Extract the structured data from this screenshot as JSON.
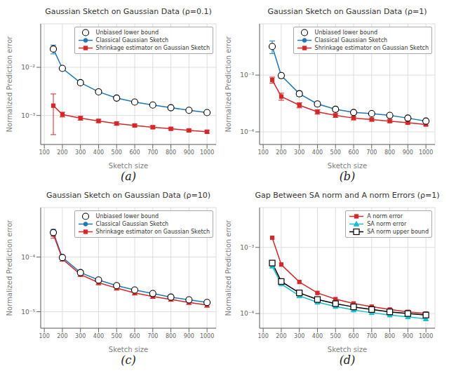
{
  "chart_data": [
    {
      "type": "line",
      "title": "Gaussian Sketch on Gaussian Data (ρ=0.1)",
      "x_label": "Sketch size",
      "y_label": "Normalized Prediction error",
      "annotations": [
        "(a)"
      ],
      "x": [
        150,
        200,
        300,
        400,
        500,
        600,
        700,
        800,
        900,
        1000
      ],
      "series": [
        {
          "name": "Unbiased lower bound",
          "color": "#000000",
          "marker": "open_circle",
          "line_style": "none",
          "values": [
            0.024,
            0.0095,
            0.0048,
            0.0031,
            0.0023,
            0.0019,
            0.00165,
            0.00145,
            0.00128,
            0.00115
          ]
        },
        {
          "name": "Classical Gaussian Sketch",
          "color": "#1f77b4",
          "marker": "circle",
          "line_style": "solid",
          "values": [
            0.024,
            0.0095,
            0.0048,
            0.0031,
            0.0023,
            0.0019,
            0.00165,
            0.00145,
            0.00128,
            0.00115
          ],
          "errors": [
            0.005,
            0.0008,
            0.0004,
            0.0002,
            0.00015,
            0.00012,
            0.0001,
            0.0001,
            8e-05,
            7e-05
          ]
        },
        {
          "name": "Shrinkage estimator on Gaussian Sketch",
          "color": "#d62728",
          "marker": "square",
          "line_style": "solid",
          "values": [
            0.0016,
            0.00105,
            0.00088,
            0.00077,
            0.00068,
            0.00062,
            0.00057,
            0.00053,
            0.00049,
            0.00046
          ],
          "errors": [
            0.0012,
            0.00012,
            8e-05,
            6e-05,
            5e-05,
            4e-05,
            4e-05,
            3e-05,
            3e-05,
            3e-05
          ]
        }
      ],
      "xlim": [
        80,
        1050
      ],
      "xticks": [
        100,
        200,
        300,
        400,
        500,
        600,
        700,
        800,
        900,
        1000
      ],
      "ylim": [
        0.00025,
        0.08
      ],
      "yticks": [
        {
          "value": 0.001,
          "label": "10⁻³"
        },
        {
          "value": 0.01,
          "label": "10⁻²"
        }
      ],
      "log": "y",
      "grid": true,
      "legend": "upper right"
    },
    {
      "type": "line",
      "title": "Gaussian Sketch on Gaussian Data (ρ=1)",
      "x_label": "Sketch size",
      "y_label": "Normalized Prediction error",
      "annotations": [
        "(b)"
      ],
      "x": [
        150,
        200,
        300,
        400,
        500,
        600,
        700,
        800,
        900,
        1000
      ],
      "series": [
        {
          "name": "Unbiased lower bound",
          "color": "#000000",
          "marker": "open_circle",
          "line_style": "none",
          "values": [
            0.0032,
            0.00098,
            0.00047,
            0.00031,
            0.00025,
            0.00022,
            0.00021,
            0.000195,
            0.000175,
            0.000155
          ]
        },
        {
          "name": "Classical Gaussian Sketch",
          "color": "#1f77b4",
          "marker": "circle",
          "line_style": "solid",
          "values": [
            0.0032,
            0.00098,
            0.00047,
            0.00031,
            0.00025,
            0.00022,
            0.00021,
            0.000195,
            0.000175,
            0.000155
          ],
          "errors": [
            0.0008,
            0.0001,
            5e-05,
            3e-05,
            2e-05,
            1.5e-05,
            1.2e-05,
            1e-05,
            1e-05,
            8e-06
          ]
        },
        {
          "name": "Shrinkage estimator on Gaussian Sketch",
          "color": "#d62728",
          "marker": "square",
          "line_style": "solid",
          "values": [
            0.00082,
            0.00042,
            0.000295,
            0.000225,
            0.000195,
            0.000175,
            0.000165,
            0.000155,
            0.000145,
            0.000135
          ],
          "errors": [
            0.0001,
            6e-05,
            3e-05,
            2e-05,
            1.5e-05,
            1.2e-05,
            1e-05,
            9e-06,
            8e-06,
            7e-06
          ]
        }
      ],
      "xlim": [
        80,
        1050
      ],
      "xticks": [
        100,
        200,
        300,
        400,
        500,
        600,
        700,
        800,
        900,
        1000
      ],
      "ylim": [
        6e-05,
        0.008
      ],
      "yticks": [
        {
          "value": 0.0001,
          "label": "10⁻⁴"
        },
        {
          "value": 0.001,
          "label": "10⁻³"
        }
      ],
      "log": "y",
      "grid": true,
      "legend": "upper right"
    },
    {
      "type": "line",
      "title": "Gaussian Sketch on Gaussian Data (ρ=10)",
      "x_label": "Sketch size",
      "y_label": "Normalized Prediction error",
      "annotations": [
        "(c)"
      ],
      "x": [
        150,
        200,
        300,
        400,
        500,
        600,
        700,
        800,
        900,
        1000
      ],
      "series": [
        {
          "name": "Unbiased lower bound",
          "color": "#000000",
          "marker": "open_circle",
          "line_style": "none",
          "values": [
            0.00028,
            9.8e-05,
            5.2e-05,
            3.8e-05,
            3e-05,
            2.5e-05,
            2.15e-05,
            1.85e-05,
            1.65e-05,
            1.48e-05
          ]
        },
        {
          "name": "Classical Gaussian Sketch",
          "color": "#1f77b4",
          "marker": "circle",
          "line_style": "solid",
          "values": [
            0.00028,
            9.8e-05,
            5.2e-05,
            3.8e-05,
            3e-05,
            2.5e-05,
            2.15e-05,
            1.85e-05,
            1.65e-05,
            1.48e-05
          ],
          "errors": [
            4e-05,
            8e-06,
            5e-06,
            3e-06,
            2.5e-06,
            2e-06,
            1.7e-06,
            1.5e-06,
            1.3e-06,
            1.2e-06
          ]
        },
        {
          "name": "Shrinkage estimator on Gaussian Sketch",
          "color": "#d62728",
          "marker": "square",
          "line_style": "solid",
          "values": [
            0.00026,
            9.2e-05,
            4.8e-05,
            3.4e-05,
            2.7e-05,
            2.2e-05,
            1.9e-05,
            1.68e-05,
            1.48e-05,
            1.32e-05
          ],
          "errors": [
            4e-05,
            8e-06,
            4e-06,
            3e-06,
            2.2e-06,
            1.8e-06,
            1.5e-06,
            1.3e-06,
            1.2e-06,
            1.1e-06
          ]
        }
      ],
      "xlim": [
        80,
        1050
      ],
      "xticks": [
        100,
        200,
        300,
        400,
        500,
        600,
        700,
        800,
        900,
        1000
      ],
      "ylim": [
        5e-06,
        0.0008
      ],
      "yticks": [
        {
          "value": 1e-05,
          "label": "10⁻⁵"
        },
        {
          "value": 0.0001,
          "label": "10⁻⁴"
        }
      ],
      "log": "y",
      "grid": true,
      "legend": "upper right"
    },
    {
      "type": "line",
      "title": "Gap Between SA norm and A norm Errors (ρ=1)",
      "x_label": "Sketch size",
      "y_label": "Normalized Prediction error",
      "annotations": [
        "(d)"
      ],
      "x": [
        150,
        200,
        300,
        400,
        500,
        600,
        700,
        800,
        900,
        1000
      ],
      "series": [
        {
          "name": "A norm error",
          "color": "#d62728",
          "marker": "square",
          "line_style": "solid",
          "values": [
            0.0014,
            0.00055,
            0.0003,
            0.000205,
            0.000165,
            0.000142,
            0.000127,
            0.000115,
            0.000106,
            0.0001
          ]
        },
        {
          "name": "SA norm error",
          "color": "#17becf",
          "marker": "triangle",
          "line_style": "solid",
          "values": [
            0.00052,
            0.00028,
            0.000185,
            0.000148,
            0.000128,
            0.000113,
            0.000103,
            9.5e-05,
            8.9e-05,
            8.3e-05
          ]
        },
        {
          "name": "SA norm upper bound",
          "color": "#000000",
          "marker": "open_square",
          "line_style": "solid",
          "values": [
            0.00058,
            0.000305,
            0.000205,
            0.000163,
            0.000141,
            0.000126,
            0.000115,
            0.000106,
            0.0001,
            9.5e-05
          ]
        }
      ],
      "xlim": [
        80,
        1050
      ],
      "xticks": [
        100,
        200,
        300,
        400,
        500,
        600,
        700,
        800,
        900,
        1000
      ],
      "ylim": [
        6e-05,
        0.004
      ],
      "yticks": [
        {
          "value": 0.0001,
          "label": "10⁻⁴"
        },
        {
          "value": 0.001,
          "label": "10⁻³"
        }
      ],
      "log": "y",
      "grid": true,
      "legend": "upper right"
    }
  ]
}
